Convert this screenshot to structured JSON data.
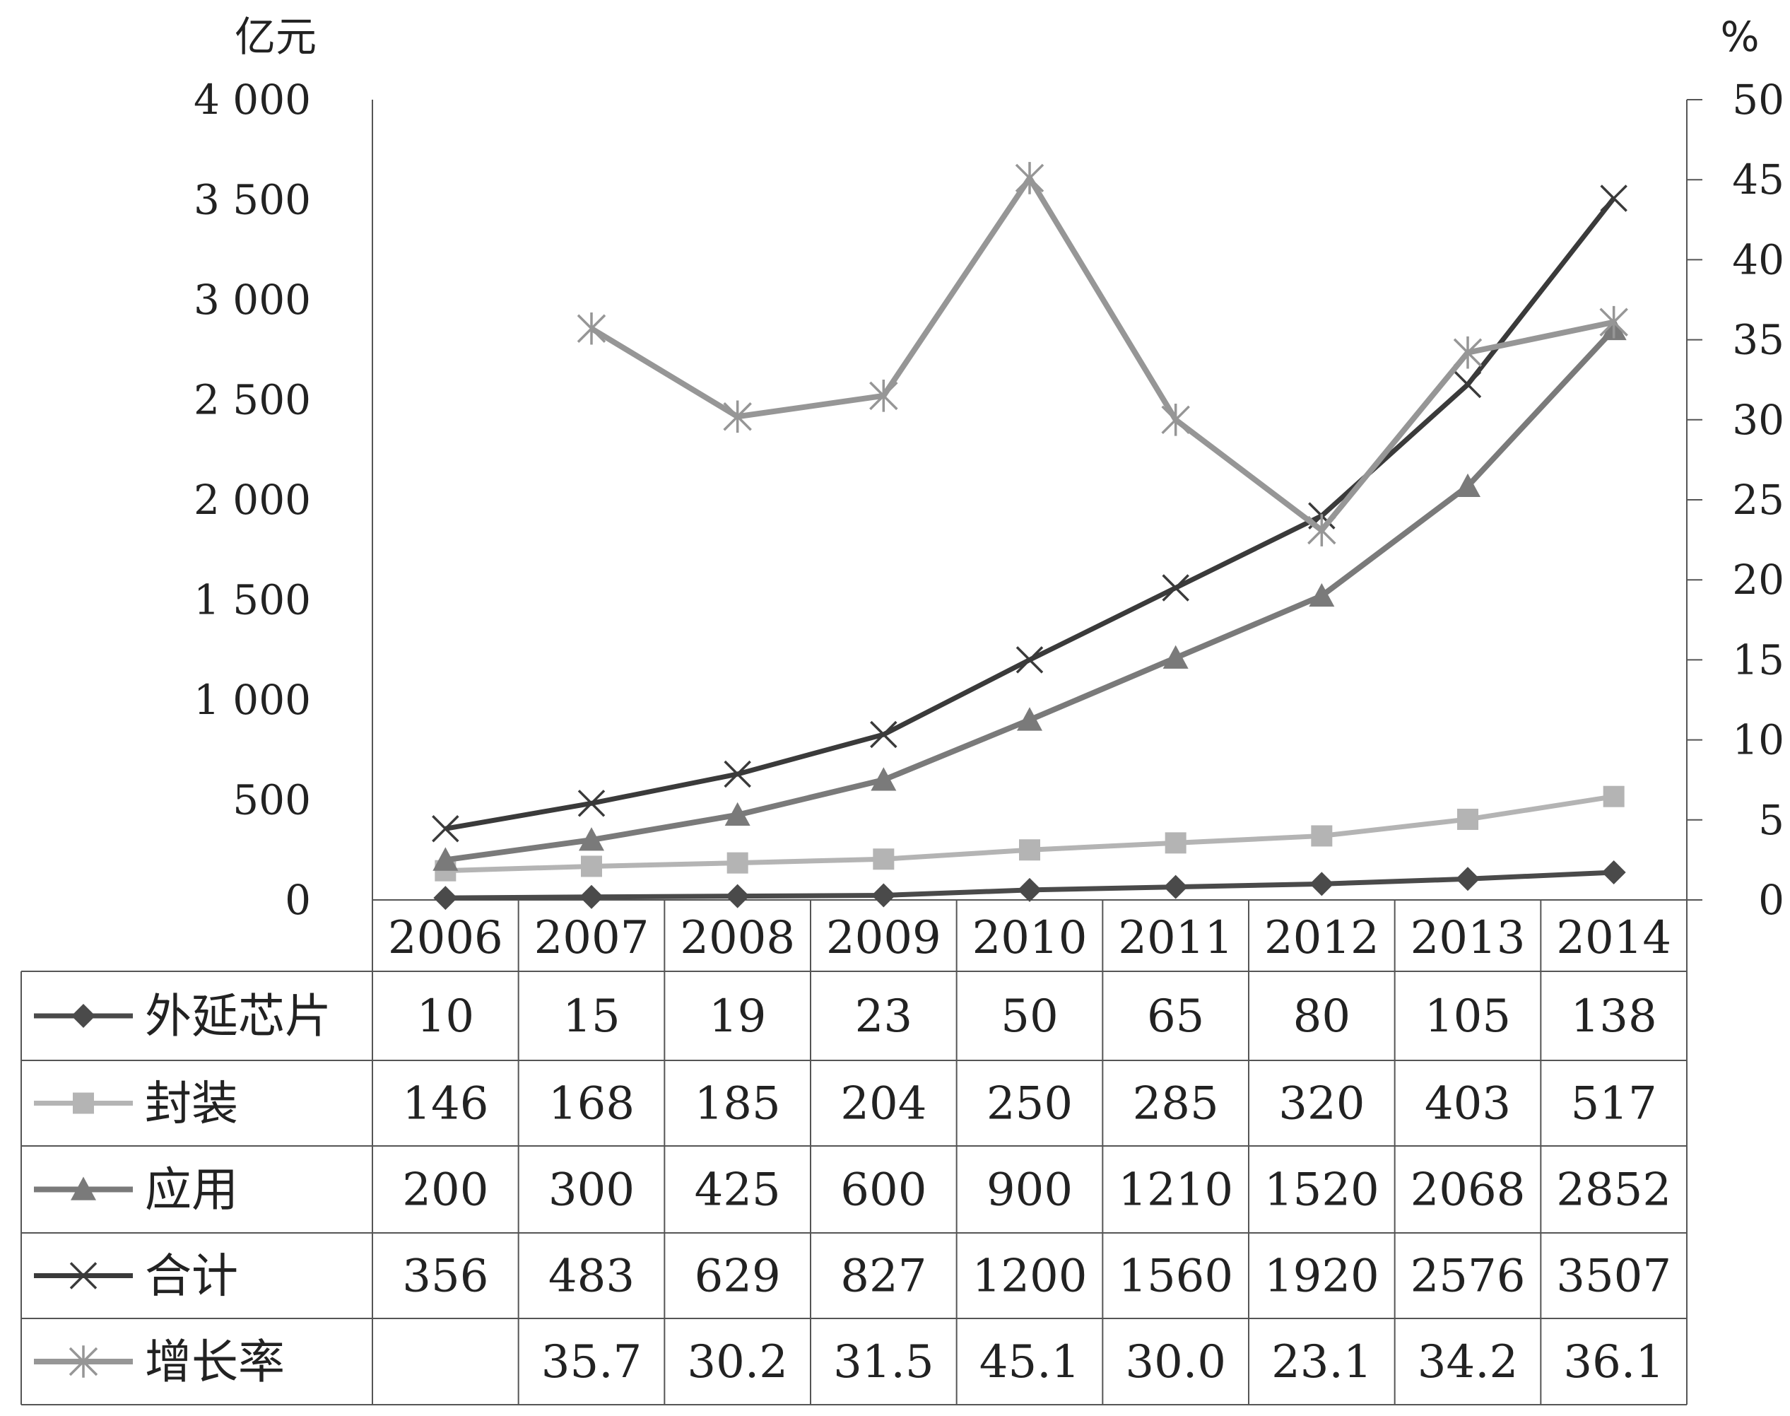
{
  "chart_data": {
    "type": "line",
    "left_unit": "亿元",
    "right_unit": "%",
    "left_ticks": [
      "0",
      "500",
      "1 000",
      "1 500",
      "2 000",
      "2 500",
      "3 000",
      "3 500",
      "4 000"
    ],
    "right_ticks": [
      "0",
      "5",
      "10",
      "15",
      "20",
      "25",
      "30",
      "35",
      "40",
      "45",
      "50"
    ],
    "left_range": [
      0,
      4000
    ],
    "right_range": [
      0,
      50
    ],
    "categories": [
      "2006",
      "2007",
      "2008",
      "2009",
      "2010",
      "2011",
      "2012",
      "2013",
      "2014"
    ],
    "series": [
      {
        "name": "外延芯片",
        "axis": "left",
        "marker": "diamond",
        "color": "#4a4a4a",
        "values": [
          10,
          15,
          19,
          23,
          50,
          65,
          80,
          105,
          138
        ],
        "labels": [
          "10",
          "15",
          "19",
          "23",
          "50",
          "65",
          "80",
          "105",
          "138"
        ]
      },
      {
        "name": "封装",
        "axis": "left",
        "marker": "square",
        "color": "#b4b4b4",
        "values": [
          146,
          168,
          185,
          204,
          250,
          285,
          320,
          403,
          517
        ],
        "labels": [
          "146",
          "168",
          "185",
          "204",
          "250",
          "285",
          "320",
          "403",
          "517"
        ]
      },
      {
        "name": "应用",
        "axis": "left",
        "marker": "triangle",
        "color": "#7a7a7a",
        "values": [
          200,
          300,
          425,
          600,
          900,
          1210,
          1520,
          2068,
          2852
        ],
        "labels": [
          "200",
          "300",
          "425",
          "600",
          "900",
          "1210",
          "1520",
          "2068",
          "2852"
        ]
      },
      {
        "name": "合计",
        "axis": "left",
        "marker": "x",
        "color": "#3a3a3a",
        "values": [
          356,
          483,
          629,
          827,
          1200,
          1560,
          1920,
          2576,
          3507
        ],
        "labels": [
          "356",
          "483",
          "629",
          "827",
          "1200",
          "1560",
          "1920",
          "2576",
          "3507"
        ]
      },
      {
        "name": "增长率",
        "axis": "right",
        "marker": "star",
        "color": "#969696",
        "values": [
          null,
          35.7,
          30.2,
          31.5,
          45.1,
          30.0,
          23.1,
          34.2,
          36.1
        ],
        "labels": [
          "",
          "35.7",
          "30.2",
          "31.5",
          "45.1",
          "30.0",
          "23.1",
          "34.2",
          "36.1"
        ]
      }
    ]
  }
}
